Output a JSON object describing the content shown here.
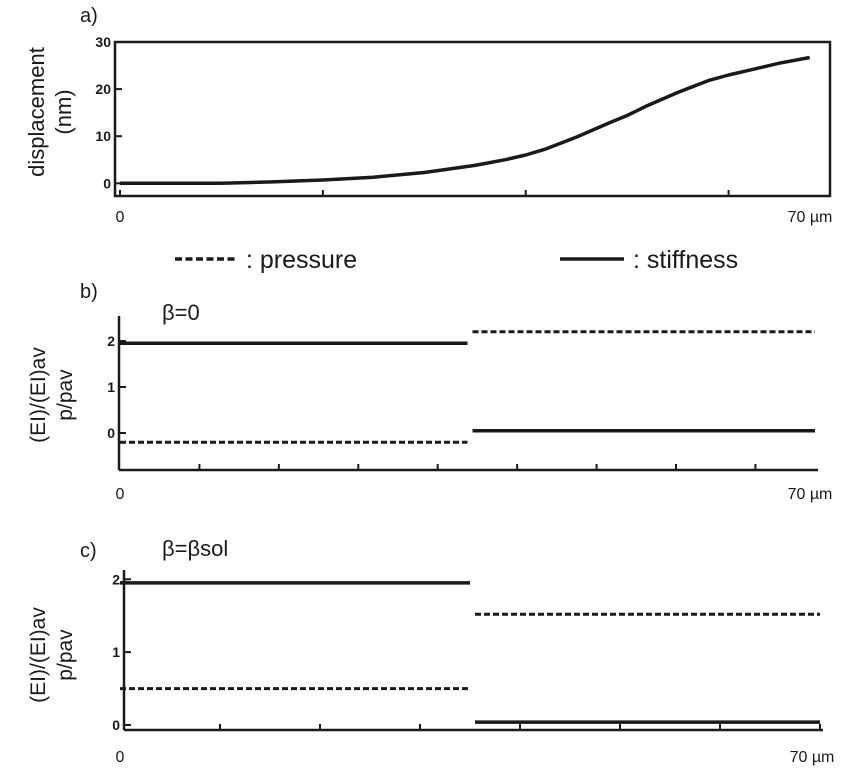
{
  "legend": {
    "dashed_label": ": pressure",
    "solid_label": ": stiffness"
  },
  "chart_data": [
    {
      "type": "line",
      "panel_label": "a)",
      "ylabel_line1": "displacement",
      "ylabel_line2": "(nm)",
      "x_start_label": "0",
      "x_end_label": "70 µm",
      "xlim": [
        0,
        70
      ],
      "ylim": [
        -1,
        30
      ],
      "yticks": [
        0,
        10,
        20,
        30
      ],
      "xticks": [
        0,
        20,
        40,
        60
      ],
      "series": [
        {
          "style": "solid",
          "x": [
            0,
            5,
            10,
            15,
            20,
            25,
            30,
            35,
            38,
            40,
            42,
            45,
            48,
            50,
            52,
            55,
            58,
            60,
            62,
            65,
            68
          ],
          "y": [
            0,
            0,
            0,
            0.3,
            0.7,
            1.3,
            2.3,
            3.8,
            5.0,
            6.0,
            7.3,
            9.8,
            12.6,
            14.4,
            16.5,
            19.3,
            21.8,
            23.0,
            24.0,
            25.5,
            26.7
          ]
        }
      ]
    },
    {
      "type": "line",
      "panel_label": "b)",
      "beta_label": "β=0",
      "ylabel_line1": "(EI)/(EI)av",
      "ylabel_line2": "p/pav",
      "x_start_label": "0",
      "x_end_label": "70 µm",
      "xlim": [
        0,
        70
      ],
      "ylim": [
        -0.5,
        2.5
      ],
      "yticks": [
        0,
        1,
        2
      ],
      "xticks": [
        0,
        8,
        16,
        24,
        32,
        40,
        48,
        56,
        64
      ],
      "series": [
        {
          "style": "solid",
          "x": [
            0,
            35
          ],
          "y": [
            1.95,
            1.95
          ]
        },
        {
          "style": "solid",
          "x": [
            35.5,
            70
          ],
          "y": [
            0.05,
            0.05
          ]
        },
        {
          "style": "dashed",
          "x": [
            0,
            35
          ],
          "y": [
            -0.2,
            -0.2
          ]
        },
        {
          "style": "dashed",
          "x": [
            35.5,
            70
          ],
          "y": [
            2.2,
            2.2
          ]
        }
      ]
    },
    {
      "type": "line",
      "panel_label": "c)",
      "beta_label": "β=βsol",
      "ylabel_line1": "(EI)/(EI)av",
      "ylabel_line2": "p/pav",
      "x_start_label": "0",
      "x_end_label": "70 µm",
      "xlim": [
        0,
        70
      ],
      "ylim": [
        0,
        2.1
      ],
      "yticks": [
        0,
        1,
        2
      ],
      "xticks": [
        0,
        10,
        20,
        30,
        40,
        50,
        60,
        70
      ],
      "series": [
        {
          "style": "solid",
          "x": [
            0,
            35
          ],
          "y": [
            1.95,
            1.95
          ]
        },
        {
          "style": "solid",
          "x": [
            35.5,
            70
          ],
          "y": [
            0.04,
            0.04
          ]
        },
        {
          "style": "dashed",
          "x": [
            0,
            35
          ],
          "y": [
            0.5,
            0.5
          ]
        },
        {
          "style": "dashed",
          "x": [
            35.5,
            70
          ],
          "y": [
            1.52,
            1.52
          ]
        }
      ]
    }
  ]
}
